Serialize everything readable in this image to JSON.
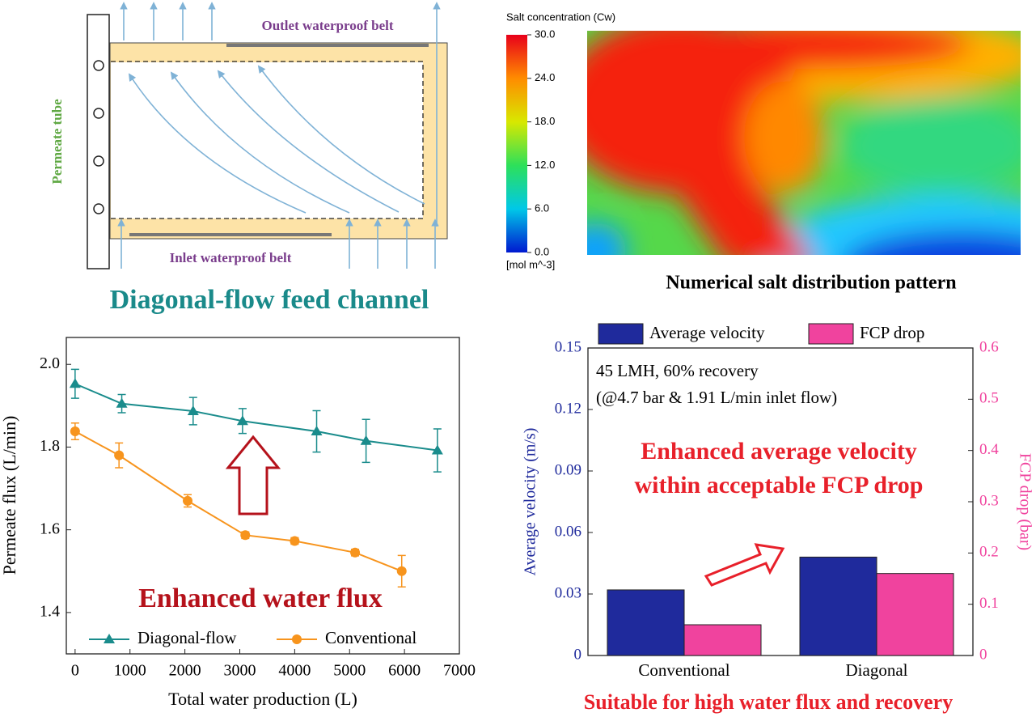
{
  "diagram": {
    "title": "Diagonal-flow feed channel",
    "outlet": "Outlet waterproof belt",
    "inlet": "Inlet waterproof belt",
    "tube": "Permeate tube"
  },
  "heatmap": {
    "title": "Salt concentration (Cw)",
    "unit": "[mol m^-3]",
    "caption": "Numerical salt distribution pattern",
    "clim": [
      0,
      30
    ],
    "ticks": [
      {
        "value": 30,
        "label": "30.0"
      },
      {
        "value": 24,
        "label": "24.0"
      },
      {
        "value": 18,
        "label": "18.0"
      },
      {
        "value": 12,
        "label": "12.0"
      },
      {
        "value": 6,
        "label": "6.0"
      },
      {
        "value": 0,
        "label": "0.0"
      }
    ]
  },
  "chart_data": [
    {
      "type": "line",
      "xlabel": "Total water production (L)",
      "ylabel": "Permeate flux (L/min)",
      "xlim": [
        -160,
        7000
      ],
      "xticks": [
        0,
        1000,
        2000,
        3000,
        4000,
        5000,
        6000,
        7000
      ],
      "ylim": [
        1.3,
        2.065
      ],
      "yticks": [
        1.4,
        1.6,
        1.8,
        {
          "value": 2,
          "label": "2.0"
        }
      ],
      "annotation": "Enhanced water flux",
      "legend": "bottom",
      "series": [
        {
          "name": "Diagonal-flow",
          "color": "#1a8c8c",
          "marker": "triangle",
          "x": [
            0,
            850,
            2150,
            3050,
            4400,
            5300,
            6600
          ],
          "values": [
            1.953,
            1.905,
            1.887,
            1.863,
            1.838,
            1.815,
            1.792
          ],
          "errors": [
            0.035,
            0.022,
            0.033,
            0.03,
            0.05,
            0.052,
            0.052
          ]
        },
        {
          "name": "Conventional",
          "color": "#f7941d",
          "marker": "circle",
          "x": [
            0,
            800,
            2050,
            3100,
            4000,
            5100,
            5950
          ],
          "values": [
            1.838,
            1.78,
            1.67,
            1.587,
            1.573,
            1.545,
            1.5
          ],
          "errors": [
            0.02,
            0.03,
            0.015,
            0.008,
            0.008,
            0.008,
            0.038
          ]
        }
      ]
    },
    {
      "type": "bar",
      "categories": [
        "Conventional",
        "Diagonal"
      ],
      "ylabel": "Average velocity (m/s)",
      "y2label": "FCP drop (bar)",
      "ylim": [
        0,
        0.15
      ],
      "yticks": [
        0,
        0.03,
        0.06,
        0.09,
        0.12,
        0.15
      ],
      "y2lim": [
        0,
        0.6
      ],
      "y2ticks": [
        0,
        0.1,
        0.2,
        0.3,
        0.4,
        0.5,
        0.6
      ],
      "legend": "top",
      "notes": [
        "45 LMH, 60% recovery",
        "(@4.7 bar & 1.91 L/min inlet flow)"
      ],
      "highlight": [
        "Enhanced average velocity",
        "within acceptable FCP drop"
      ],
      "caption": "Suitable for high water flux and recovery",
      "series": [
        {
          "name": "Average velocity",
          "color": "#1f2a9c",
          "values": [
            0.032,
            0.048
          ]
        },
        {
          "name": "FCP drop",
          "color": "#f0439e",
          "axis": "y2",
          "values": [
            0.06,
            0.16
          ]
        }
      ]
    }
  ]
}
